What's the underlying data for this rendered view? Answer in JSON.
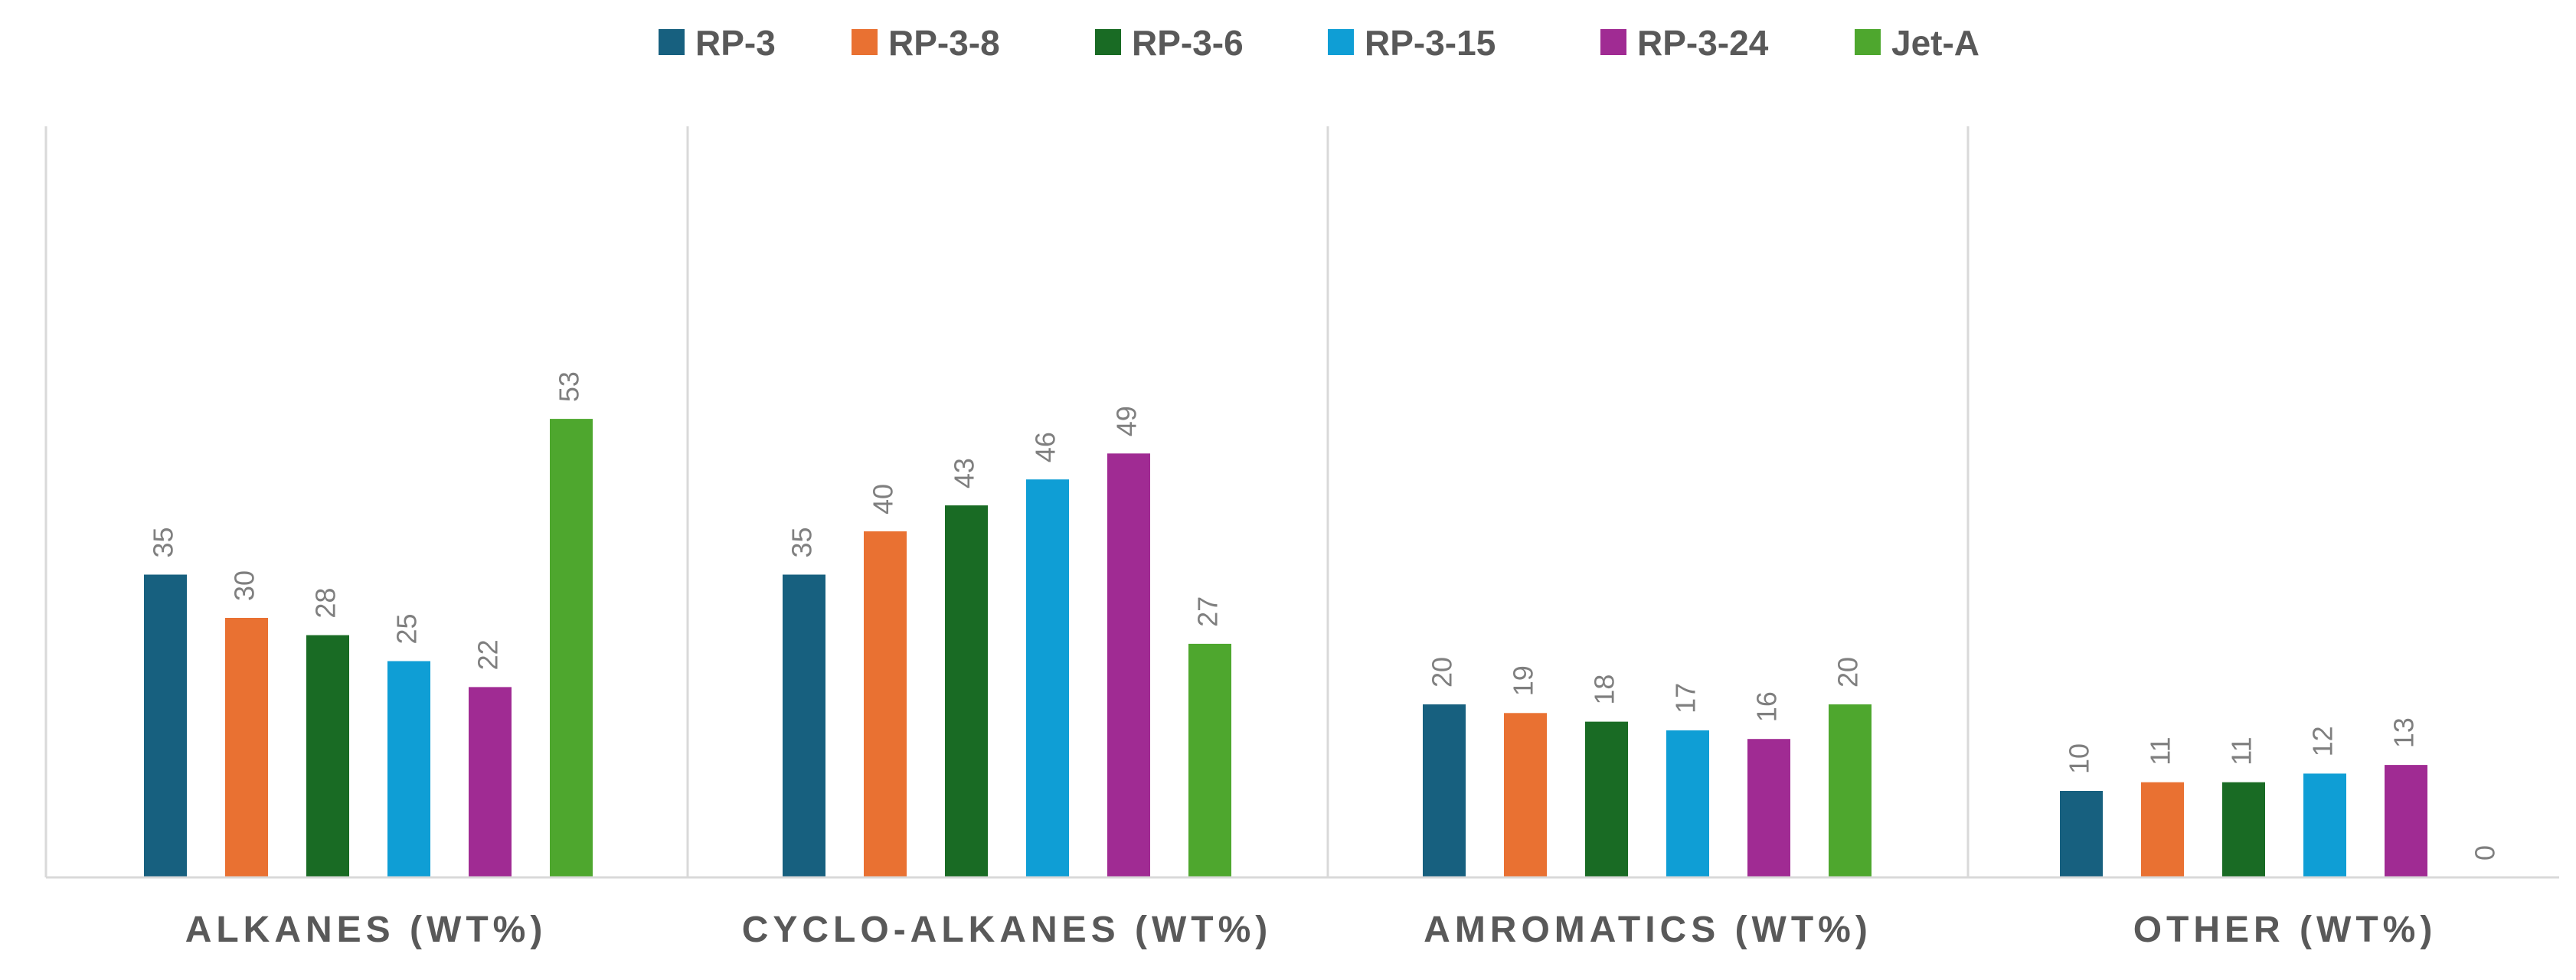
{
  "chart_data": {
    "type": "bar",
    "title": "",
    "xlabel": "",
    "ylabel": "",
    "ylim": [
      0,
      60
    ],
    "grid": false,
    "legend_position": "top",
    "categories": [
      "ALKANES (WT%)",
      "CYCLO-ALKANES (WT%)",
      "AMROMATICS (WT%)",
      "OTHER (WT%)"
    ],
    "series": [
      {
        "name": "RP-3",
        "color": "#17607f",
        "values": [
          35,
          35,
          20,
          10
        ]
      },
      {
        "name": "RP-3-8",
        "color": "#e97132",
        "values": [
          30,
          40,
          19,
          11
        ]
      },
      {
        "name": "RP-3-6",
        "color": "#196b24",
        "values": [
          28,
          43,
          18,
          11
        ]
      },
      {
        "name": "RP-3-15",
        "color": "#0f9ed5",
        "values": [
          25,
          46,
          17,
          12
        ]
      },
      {
        "name": "RP-3-24",
        "color": "#a02b93",
        "values": [
          22,
          49,
          16,
          13
        ]
      },
      {
        "name": "Jet-A",
        "color": "#4ea72e",
        "values": [
          53,
          27,
          20,
          0
        ]
      }
    ]
  }
}
